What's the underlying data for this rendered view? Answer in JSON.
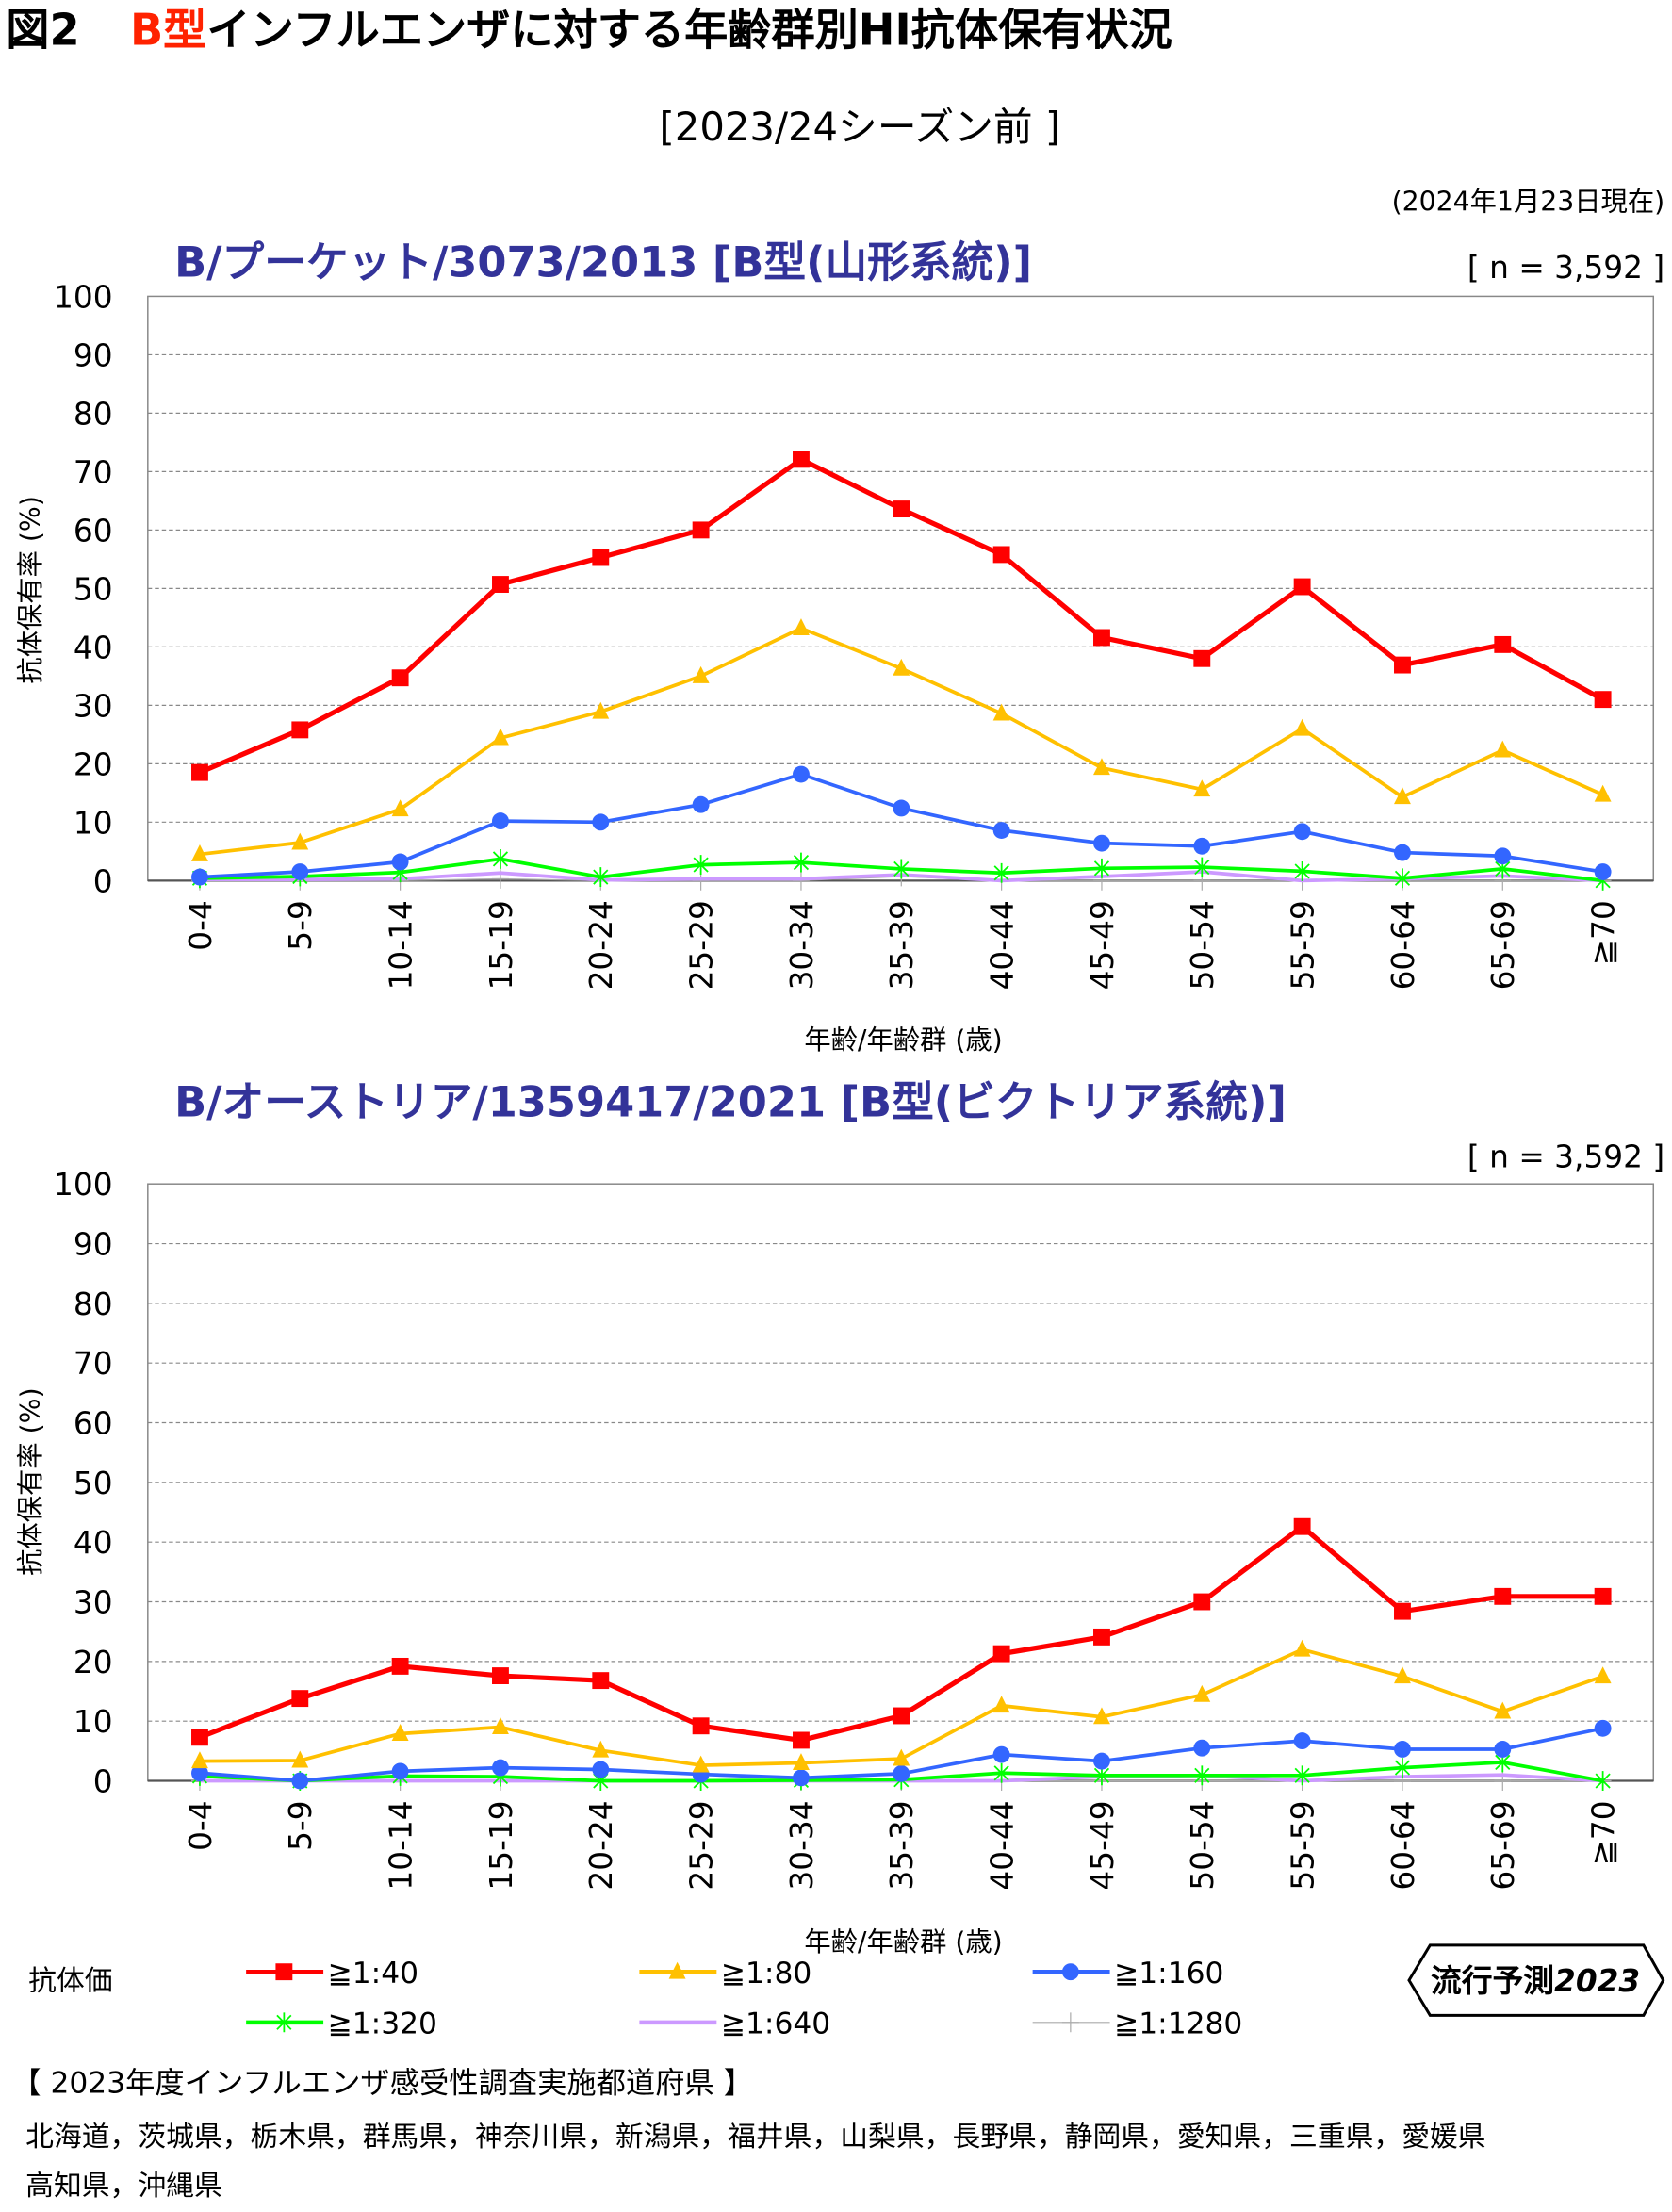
{
  "header": {
    "fig_no": "図2",
    "title_accent": "B型",
    "title_rest": "インフルエンザに対する年齢群別HI抗体保有状況",
    "subtitle": "[2023/24シーズン前 ]",
    "as_of": "(2024年1月23日現在)"
  },
  "legend": {
    "label": "抗体価",
    "logo_text": "流行予測",
    "logo_year": "2023"
  },
  "footer": {
    "heading": "【 2023年度インフルエンザ感受性調査実施都道府県 】",
    "line1": "北海道，茨城県，栃木県，群馬県，神奈川県，新潟県，福井県，山梨県，長野県，静岡県，愛知県，三重県，愛媛県",
    "line2": "高知県，沖縄県"
  },
  "series_styles": [
    {
      "name": "≧1:40",
      "color": "#ff0000",
      "marker": "square"
    },
    {
      "name": "≧1:80",
      "color": "#ffc000",
      "marker": "triangle"
    },
    {
      "name": "≧1:160",
      "color": "#3366ff",
      "marker": "circle"
    },
    {
      "name": "≧1:320",
      "color": "#00ff00",
      "marker": "star"
    },
    {
      "name": "≧1:640",
      "color": "#cc99ff",
      "marker": "none"
    },
    {
      "name": "≧1:1280",
      "color": "#aaaaaa",
      "marker": "plus"
    }
  ],
  "chart_data": [
    {
      "type": "line",
      "title": "B/プーケット/3073/2013 [B型(山形系統)]",
      "n_label": "[ n = 3,592 ]",
      "xlabel": "年齢/年齢群 (歳)",
      "ylabel": "抗体保有率 (%)",
      "ylim": [
        0,
        100
      ],
      "yticks": [
        0,
        10,
        20,
        30,
        40,
        50,
        60,
        70,
        80,
        90,
        100
      ],
      "grid": true,
      "categories": [
        "0-4",
        "5-9",
        "10-14",
        "15-19",
        "20-24",
        "25-29",
        "30-34",
        "35-39",
        "40-44",
        "45-49",
        "50-54",
        "55-59",
        "60-64",
        "65-69",
        "≧70"
      ],
      "series": [
        {
          "name": "≧1:40",
          "values": [
            18.5,
            25.8,
            34.7,
            50.7,
            55.3,
            60.0,
            72.1,
            63.6,
            55.8,
            41.6,
            38.0,
            50.3,
            36.9,
            40.4,
            31.0
          ]
        },
        {
          "name": "≧1:80",
          "values": [
            4.5,
            6.5,
            12.2,
            24.4,
            28.9,
            35.0,
            43.2,
            36.3,
            28.6,
            19.3,
            15.6,
            26.0,
            14.3,
            22.3,
            14.7
          ]
        },
        {
          "name": "≧1:160",
          "values": [
            0.6,
            1.5,
            3.2,
            10.2,
            10.0,
            13.0,
            18.2,
            12.4,
            8.6,
            6.4,
            5.9,
            8.4,
            4.8,
            4.2,
            1.5
          ]
        },
        {
          "name": "≧1:320",
          "values": [
            0.4,
            0.7,
            1.4,
            3.7,
            0.6,
            2.7,
            3.1,
            2.0,
            1.3,
            2.1,
            2.3,
            1.6,
            0.4,
            2.0,
            0.0
          ]
        },
        {
          "name": "≧1:640",
          "values": [
            0.2,
            0.2,
            0.3,
            1.3,
            0.1,
            0.3,
            0.3,
            1.0,
            0.0,
            0.7,
            1.5,
            0.0,
            0.3,
            0.8,
            0.0
          ]
        },
        {
          "name": "≧1:1280",
          "values": [
            0.0,
            0.0,
            0.0,
            0.3,
            0.0,
            0.0,
            0.0,
            0.7,
            0.0,
            0.0,
            0.0,
            0.0,
            0.0,
            0.0,
            0.0
          ]
        }
      ]
    },
    {
      "type": "line",
      "title": "B/オーストリア/1359417/2021  [B型(ビクトリア系統)]",
      "n_label": "[ n = 3,592 ]",
      "xlabel": "年齢/年齢群 (歳)",
      "ylabel": "抗体保有率 (%)",
      "ylim": [
        0,
        100
      ],
      "yticks": [
        0,
        10,
        20,
        30,
        40,
        50,
        60,
        70,
        80,
        90,
        100
      ],
      "grid": true,
      "categories": [
        "0-4",
        "5-9",
        "10-14",
        "15-19",
        "20-24",
        "25-29",
        "30-34",
        "35-39",
        "40-44",
        "45-49",
        "50-54",
        "55-59",
        "60-64",
        "65-69",
        "≧70"
      ],
      "series": [
        {
          "name": "≧1:40",
          "values": [
            7.3,
            13.8,
            19.2,
            17.6,
            16.8,
            9.2,
            6.8,
            10.9,
            21.3,
            24.1,
            30.0,
            42.6,
            28.4,
            30.9,
            30.9
          ]
        },
        {
          "name": "≧1:80",
          "values": [
            3.3,
            3.4,
            7.9,
            9.0,
            5.1,
            2.6,
            3.0,
            3.7,
            12.6,
            10.7,
            14.4,
            22.0,
            17.5,
            11.6,
            17.5
          ]
        },
        {
          "name": "≧1:160",
          "values": [
            1.3,
            0.0,
            1.6,
            2.2,
            1.9,
            1.1,
            0.5,
            1.2,
            4.4,
            3.3,
            5.5,
            6.7,
            5.3,
            5.3,
            8.8
          ]
        },
        {
          "name": "≧1:320",
          "values": [
            0.8,
            0.0,
            0.8,
            0.7,
            0.0,
            0.0,
            0.1,
            0.2,
            1.3,
            0.9,
            0.9,
            0.9,
            2.2,
            3.1,
            0.0
          ]
        },
        {
          "name": "≧1:640",
          "values": [
            0.0,
            0.0,
            0.0,
            0.0,
            0.0,
            0.0,
            0.0,
            0.0,
            0.0,
            0.7,
            0.9,
            0.0,
            0.7,
            1.0,
            0.0
          ]
        },
        {
          "name": "≧1:1280",
          "values": [
            0.0,
            0.0,
            0.0,
            0.0,
            0.0,
            0.0,
            0.0,
            0.0,
            0.0,
            0.0,
            0.0,
            0.0,
            0.0,
            0.0,
            0.0
          ]
        }
      ]
    }
  ]
}
